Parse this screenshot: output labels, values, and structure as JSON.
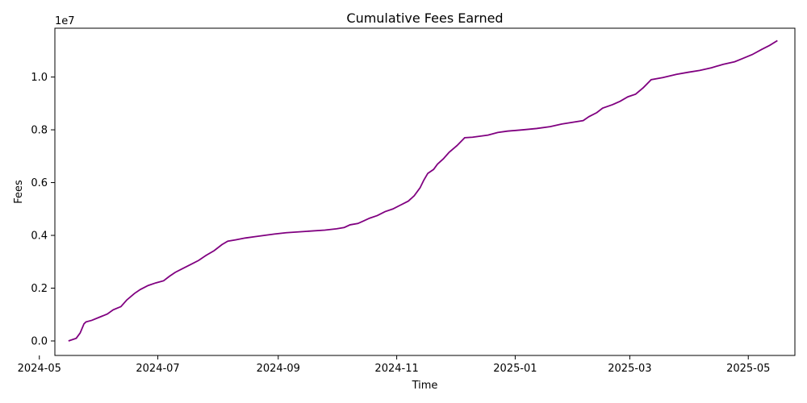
{
  "chart_data": {
    "type": "line",
    "title": "Cumulative Fees Earned",
    "xlabel": "Time",
    "ylabel": "Fees",
    "y_multiplier_label": "1e7",
    "y_scale_factor": 10000000,
    "xlim": [
      "2024-05-09",
      "2025-05-25"
    ],
    "ylim": [
      -550000,
      11850000
    ],
    "grid": false,
    "line_color": "#800080",
    "x_ticks": [
      "2024-05-01",
      "2024-07-01",
      "2024-09-01",
      "2024-11-01",
      "2025-01-01",
      "2025-03-01",
      "2025-05-01"
    ],
    "x_tick_labels": [
      "2024-05",
      "2024-07",
      "2024-09",
      "2024-11",
      "2025-01",
      "2025-03",
      "2025-05"
    ],
    "y_ticks": [
      0,
      2000000,
      4000000,
      6000000,
      8000000,
      10000000
    ],
    "y_tick_labels": [
      "0.0",
      "0.2",
      "0.4",
      "0.6",
      "0.8",
      "1.0"
    ],
    "series": [
      {
        "name": "",
        "x": [
          "2024-05-16",
          "2024-05-20",
          "2024-05-22",
          "2024-05-24",
          "2024-05-25",
          "2024-05-28",
          "2024-06-01",
          "2024-06-05",
          "2024-06-08",
          "2024-06-12",
          "2024-06-15",
          "2024-06-19",
          "2024-06-22",
          "2024-06-26",
          "2024-06-30",
          "2024-07-04",
          "2024-07-07",
          "2024-07-10",
          "2024-07-14",
          "2024-07-18",
          "2024-07-22",
          "2024-07-26",
          "2024-07-30",
          "2024-08-03",
          "2024-08-06",
          "2024-08-10",
          "2024-08-15",
          "2024-08-20",
          "2024-08-25",
          "2024-08-30",
          "2024-09-05",
          "2024-09-15",
          "2024-09-25",
          "2024-10-01",
          "2024-10-05",
          "2024-10-08",
          "2024-10-12",
          "2024-10-15",
          "2024-10-18",
          "2024-10-22",
          "2024-10-26",
          "2024-10-30",
          "2024-11-03",
          "2024-11-07",
          "2024-11-10",
          "2024-11-13",
          "2024-11-15",
          "2024-11-17",
          "2024-11-20",
          "2024-11-22",
          "2024-11-25",
          "2024-11-28",
          "2024-12-02",
          "2024-12-06",
          "2024-12-10",
          "2024-12-18",
          "2024-12-23",
          "2024-12-28",
          "2025-01-05",
          "2025-01-12",
          "2025-01-19",
          "2025-01-25",
          "2025-02-05",
          "2025-02-08",
          "2025-02-12",
          "2025-02-15",
          "2025-02-20",
          "2025-02-24",
          "2025-02-28",
          "2025-03-04",
          "2025-03-08",
          "2025-03-12",
          "2025-03-18",
          "2025-03-25",
          "2025-03-31",
          "2025-04-06",
          "2025-04-12",
          "2025-04-18",
          "2025-04-24",
          "2025-04-28",
          "2025-05-03",
          "2025-05-08",
          "2025-05-12",
          "2025-05-16"
        ],
        "y": [
          0,
          100000,
          300000,
          650000,
          720000,
          780000,
          900000,
          1020000,
          1180000,
          1300000,
          1550000,
          1800000,
          1950000,
          2100000,
          2200000,
          2280000,
          2450000,
          2600000,
          2750000,
          2900000,
          3050000,
          3250000,
          3420000,
          3650000,
          3780000,
          3830000,
          3900000,
          3950000,
          4000000,
          4050000,
          4100000,
          4150000,
          4200000,
          4250000,
          4300000,
          4400000,
          4450000,
          4550000,
          4650000,
          4750000,
          4900000,
          5000000,
          5150000,
          5300000,
          5500000,
          5800000,
          6100000,
          6350000,
          6500000,
          6700000,
          6900000,
          7150000,
          7400000,
          7700000,
          7720000,
          7800000,
          7900000,
          7950000,
          8000000,
          8050000,
          8120000,
          8220000,
          8350000,
          8500000,
          8650000,
          8820000,
          8950000,
          9080000,
          9250000,
          9350000,
          9600000,
          9900000,
          9980000,
          10100000,
          10180000,
          10250000,
          10350000,
          10480000,
          10580000,
          10700000,
          10850000,
          11050000,
          11200000,
          11380000
        ]
      }
    ]
  }
}
